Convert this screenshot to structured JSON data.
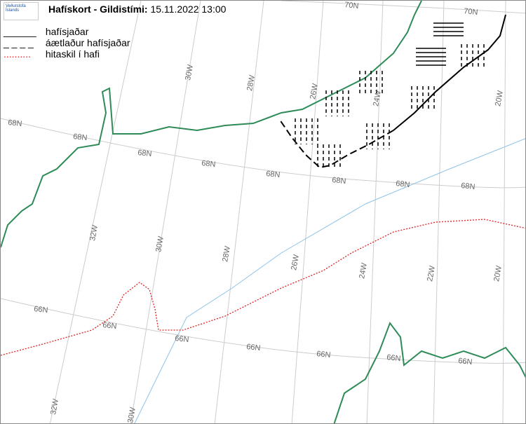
{
  "header": {
    "logo": "Veðurstofa Íslands",
    "title": "Hafískort - Gildistími:",
    "valid_time": "15.11.2022 13:00"
  },
  "legend": {
    "entries": [
      {
        "symbol": "______",
        "label": "hafísjaðar"
      },
      {
        "symbol": "_ _ _ _",
        "label": "áætlaður hafísjaðar"
      },
      {
        "symbol": "..........",
        "label": "hitaskil í hafi"
      }
    ]
  },
  "map": {
    "lat_labels": [
      "70N",
      "70N",
      "68N",
      "68N",
      "68N",
      "68N",
      "68N",
      "68N",
      "68N",
      "68N",
      "66N",
      "66N",
      "66N",
      "66N",
      "66N",
      "66N",
      "66N"
    ],
    "lon_labels": [
      "30W",
      "28W",
      "26W",
      "24W",
      "20W",
      "32W",
      "30W",
      "28W",
      "26W",
      "24W",
      "22W",
      "20W",
      "32W",
      "30W"
    ]
  }
}
